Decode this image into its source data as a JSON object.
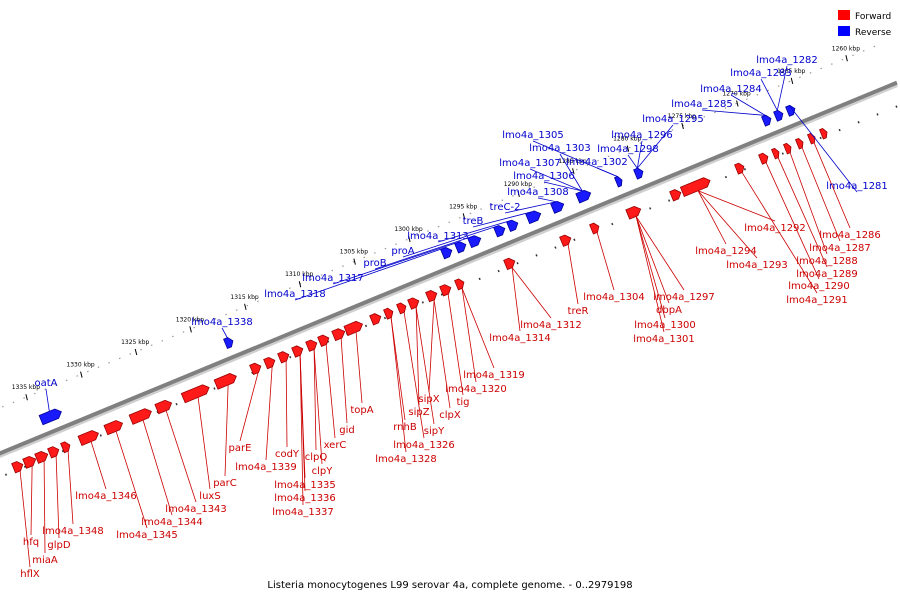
{
  "caption": "Listeria monocytogenes L99 serovar 4a, complete genome. - 0..2979198",
  "legend": {
    "forward": {
      "label": "Forward",
      "color": "#ff0000"
    },
    "reverse": {
      "label": "Reverse",
      "color": "#0000ff"
    }
  },
  "axis": {
    "unit": "kbp",
    "ticks": [
      "1260 kbp",
      "1265 kbp",
      "1270 kbp",
      "1275 kbp",
      "1280 kbp",
      "1285 kbp",
      "1290 kbp",
      "1295 kbp",
      "1300 kbp",
      "1305 kbp",
      "1310 kbp",
      "1315 kbp",
      "1320 kbp",
      "1325 kbp",
      "1330 kbp",
      "1335 kbp"
    ]
  },
  "colors": {
    "backbone": "#808080",
    "forward_label": "#cc0000",
    "reverse_label": "#0000cc"
  },
  "forward_genes": [
    "hflX",
    "hfq",
    "miaA",
    "glpD",
    "lmo4a_1348",
    "lmo4a_1346",
    "lmo4a_1345",
    "lmo4a_1344",
    "lmo4a_1343",
    "luxS",
    "parC",
    "parE",
    "lmo4a_1339",
    "codY",
    "lmo4a_1335",
    "lmo4a_1336",
    "lmo4a_1337",
    "clpQ",
    "clpY",
    "xerC",
    "gid",
    "topA",
    "rnhB",
    "lmo4a_1328",
    "lmo4a_1326",
    "sipZ",
    "sipY",
    "sipX",
    "clpX",
    "tig",
    "lmo4a_1320",
    "lmo4a_1319",
    "lmo4a_1314",
    "lmo4a_1312",
    "treR",
    "lmo4a_1304",
    "dbpA",
    "lmo4a_1300",
    "lmo4a_1301",
    "lmo4a_1297",
    "lmo4a_1294",
    "lmo4a_1293",
    "lmo4a_1292",
    "lmo4a_1291",
    "lmo4a_1290",
    "lmo4a_1289",
    "lmo4a_1288",
    "lmo4a_1287",
    "lmo4a_1286"
  ],
  "reverse_genes": [
    "oatA",
    "lmo4a_1338",
    "lmo4a_1318",
    "lmo4a_1317",
    "proB",
    "proA",
    "lmo4a_1313",
    "treB",
    "treC-2",
    "lmo4a_1308",
    "lmo4a_1306",
    "lmo4a_1307",
    "lmo4a_1303",
    "lmo4a_1305",
    "lmo4a_1302",
    "lmo4a_1298",
    "lmo4a_1296",
    "lmo4a_1295",
    "lmo4a_1285",
    "lmo4a_1284",
    "lmo4a_1283",
    "lmo4a_1282",
    "lmo4a_1281"
  ]
}
